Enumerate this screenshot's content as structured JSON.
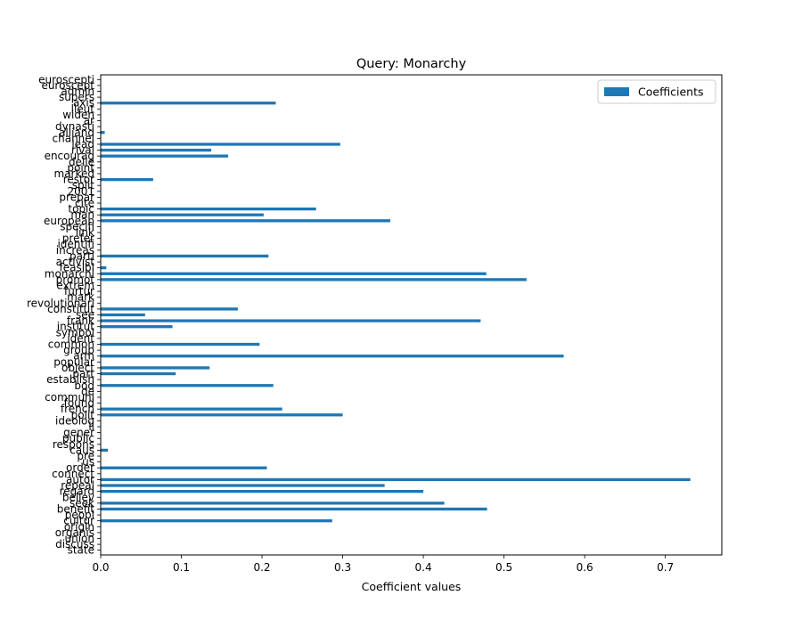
{
  "chart_data": {
    "type": "bar",
    "orientation": "horizontal",
    "title": "Query: Monarchy",
    "xlabel": "Coefficient values",
    "ylabel": "",
    "xlim": [
      0,
      0.77
    ],
    "xticks": [
      "0.0",
      "0.1",
      "0.2",
      "0.3",
      "0.4",
      "0.5",
      "0.6",
      "0.7"
    ],
    "xtick_values": [
      0,
      0.1,
      0.2,
      0.3,
      0.4,
      0.5,
      0.6,
      0.7
    ],
    "grid": false,
    "legend_position": "top-right",
    "bar_color": "#1f77b4",
    "series": [
      {
        "name": "Coefficients",
        "categories": [
          "state",
          "discuss",
          "union",
          "organis",
          "origin",
          "cultur",
          "peopl",
          "benefit",
          "seek",
          "believ",
          "regard",
          "repeal",
          "autor",
          "connect",
          "order",
          "us",
          "pre",
          "caus",
          "respons",
          "public",
          "gener",
          "il",
          "ideolog",
          "polit",
          "french",
          "found",
          "communi",
          "de",
          "bod",
          "establish",
          "part",
          "object",
          "popular",
          "arm",
          "group",
          "common",
          "ident",
          "symbol",
          "institut",
          "frank",
          "see",
          "constitut",
          "revolutionari",
          "mark",
          "furtur",
          "extrem",
          "promot",
          "monarchi",
          "feasibl",
          "activist",
          "partl",
          "increas",
          "identifi",
          "prefer",
          "link",
          "specifi",
          "european",
          "man",
          "topic",
          "cite",
          "prepar",
          "2001",
          "split",
          "restor",
          "marked",
          "point",
          "delle",
          "encourag",
          "rival",
          "lead",
          "channel",
          "alliand",
          "dynasti",
          "ar",
          "widen",
          "lieut",
          "axis",
          "supers",
          "admin",
          "euroscept",
          "euroscepti"
        ],
        "values": [
          0.0,
          0.0,
          0.0,
          0.0,
          0.0,
          0.287,
          0.0,
          0.479,
          0.426,
          0.0,
          0.4,
          0.352,
          0.731,
          0.0,
          0.206,
          0.0,
          0.0,
          0.009,
          0.0,
          0.0,
          0.0,
          0.0,
          0.0,
          0.3,
          0.225,
          0.0,
          0.0,
          0.0,
          0.214,
          0.0,
          0.093,
          0.135,
          0.0,
          0.574,
          0.0,
          0.197,
          0.0,
          0.0,
          0.089,
          0.471,
          0.055,
          0.17,
          0.0,
          0.0,
          0.0,
          0.0,
          0.528,
          0.478,
          0.007,
          0.0,
          0.208,
          0.0,
          0.0,
          0.0,
          0.0,
          0.0,
          0.359,
          0.202,
          0.267,
          0.0,
          0.0,
          0.0,
          0.0,
          0.065,
          0.0,
          0.0,
          0.0,
          0.158,
          0.137,
          0.297,
          0.0,
          0.005,
          0.0,
          0.0,
          0.0,
          0.0,
          0.217,
          0.0,
          0.0,
          0.0,
          0.0
        ]
      }
    ]
  }
}
